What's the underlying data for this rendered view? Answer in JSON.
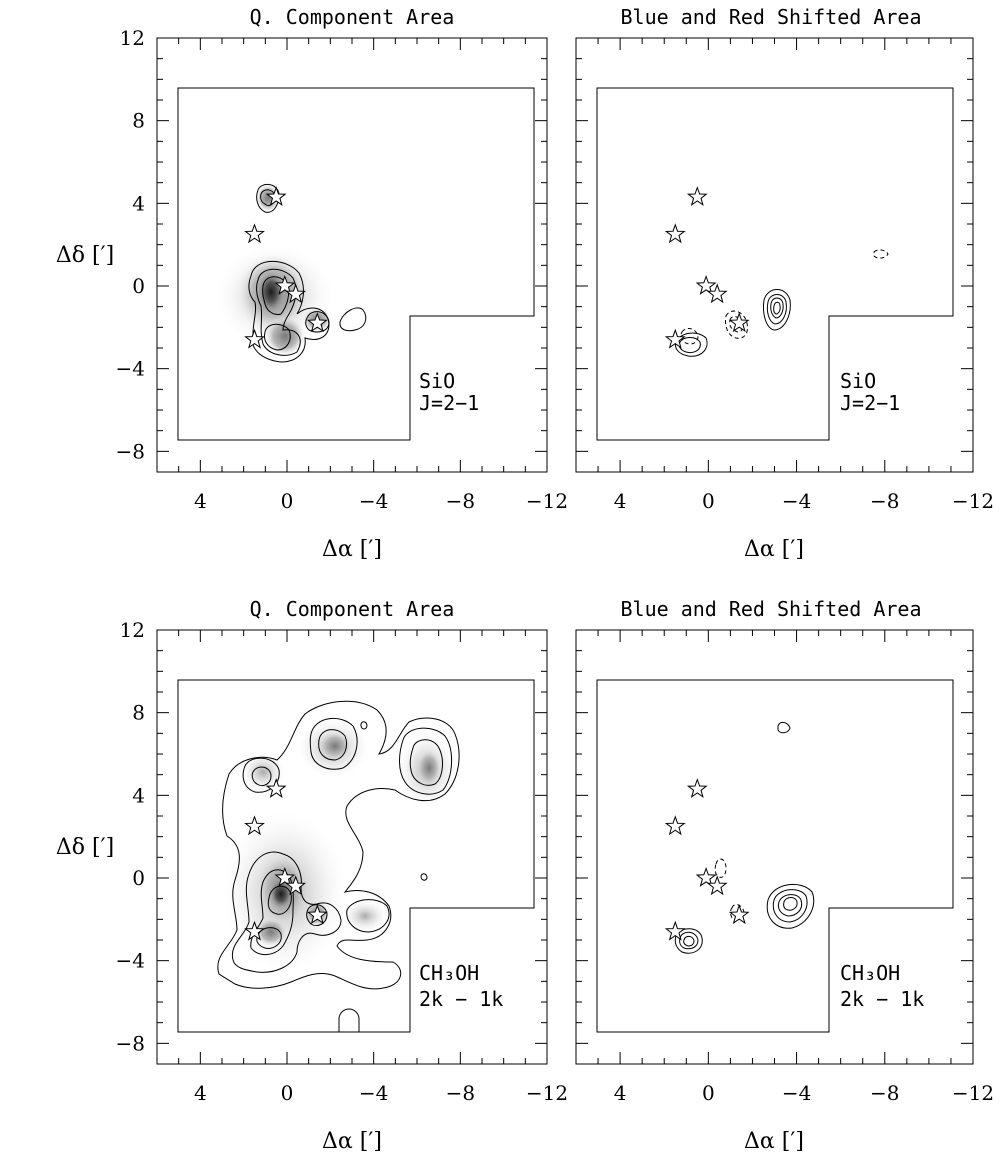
{
  "chart_data": [
    {
      "type": "heatmap",
      "title": "Q. Component Area",
      "xlabel": "Δα [′]",
      "ylabel": "Δδ [′]",
      "xlim": [
        6,
        -12
      ],
      "ylim": [
        -9,
        12
      ],
      "xticks": [
        "4",
        "0",
        "−4",
        "−8",
        "−12"
      ],
      "yticks": [
        "12",
        "8",
        "4",
        "0",
        "−4",
        "−8"
      ],
      "xtick_values": [
        4,
        0,
        -4,
        -8,
        -12
      ],
      "ytick_values": [
        12,
        8,
        4,
        0,
        -4,
        -8
      ],
      "molecule": "SiO",
      "transition": "J=2−1",
      "stars": [
        [
          0.5,
          4.3
        ],
        [
          1.5,
          2.5
        ],
        [
          0.1,
          0.0
        ],
        [
          -0.4,
          -0.4
        ],
        [
          -1.4,
          -1.8
        ],
        [
          1.5,
          -2.6
        ]
      ],
      "peaks": [
        [
          1.0,
          -0.5
        ],
        [
          0.9,
          -2.5
        ],
        [
          -0.6,
          -1.6
        ],
        [
          1.6,
          4.3
        ]
      ]
    },
    {
      "type": "heatmap",
      "title": "Blue and Red Shifted Area",
      "xlabel": "Δα [′]",
      "ylabel": "",
      "xlim": [
        6,
        -12
      ],
      "ylim": [
        -9,
        12
      ],
      "xticks": [
        "4",
        "0",
        "−4",
        "−8",
        "−12"
      ],
      "yticks": [],
      "xtick_values": [
        4,
        0,
        -4,
        -8,
        -12
      ],
      "ytick_values": [
        12,
        8,
        4,
        0,
        -4,
        -8
      ],
      "molecule": "SiO",
      "transition": "J=2−1",
      "stars": [
        [
          0.5,
          4.3
        ],
        [
          1.5,
          2.5
        ],
        [
          0.1,
          0.0
        ],
        [
          -0.4,
          -0.4
        ],
        [
          -1.4,
          -1.8
        ],
        [
          1.5,
          -2.6
        ]
      ],
      "peaks": [
        [
          -2.5,
          -1.2
        ],
        [
          1.3,
          -2.6
        ]
      ]
    },
    {
      "type": "heatmap",
      "title": "Q. Component Area",
      "xlabel": "Δα [′]",
      "ylabel": "Δδ [′]",
      "xlim": [
        6,
        -12
      ],
      "ylim": [
        -9,
        12
      ],
      "xticks": [
        "4",
        "0",
        "−4",
        "−8",
        "−12"
      ],
      "yticks": [
        "12",
        "8",
        "4",
        "0",
        "−4",
        "−8"
      ],
      "xtick_values": [
        4,
        0,
        -4,
        -8,
        -12
      ],
      "ytick_values": [
        12,
        8,
        4,
        0,
        -4,
        -8
      ],
      "molecule": "CH₃OH",
      "transition": "2k − 1k",
      "stars": [
        [
          0.5,
          4.3
        ],
        [
          1.5,
          2.5
        ],
        [
          0.1,
          0.0
        ],
        [
          -0.4,
          -0.4
        ],
        [
          -1.4,
          -1.8
        ],
        [
          1.5,
          -2.6
        ]
      ],
      "peaks": [
        [
          0.7,
          -0.7
        ],
        [
          1.4,
          -2.5
        ],
        [
          -0.7,
          -1.7
        ],
        [
          -1.3,
          4.5
        ],
        [
          -5.8,
          3.6
        ],
        [
          1.9,
          3.3
        ],
        [
          -3.3,
          -1.6
        ]
      ]
    },
    {
      "type": "heatmap",
      "title": "Blue and Red Shifted Area",
      "xlabel": "Δα [′]",
      "ylabel": "",
      "xlim": [
        6,
        -12
      ],
      "ylim": [
        -9,
        12
      ],
      "xticks": [
        "4",
        "0",
        "−4",
        "−8",
        "−12"
      ],
      "yticks": [],
      "xtick_values": [
        4,
        0,
        -4,
        -8,
        -12
      ],
      "ytick_values": [
        12,
        8,
        4,
        0,
        -4,
        -8
      ],
      "molecule": "CH₃OH",
      "transition": "2k − 1k",
      "stars": [
        [
          0.5,
          4.3
        ],
        [
          1.5,
          2.5
        ],
        [
          0.1,
          0.0
        ],
        [
          -0.4,
          -0.4
        ],
        [
          -1.4,
          -1.8
        ],
        [
          1.5,
          -2.6
        ]
      ],
      "peaks": [
        [
          -3.3,
          -1.2
        ],
        [
          1.5,
          -2.8
        ]
      ]
    }
  ]
}
